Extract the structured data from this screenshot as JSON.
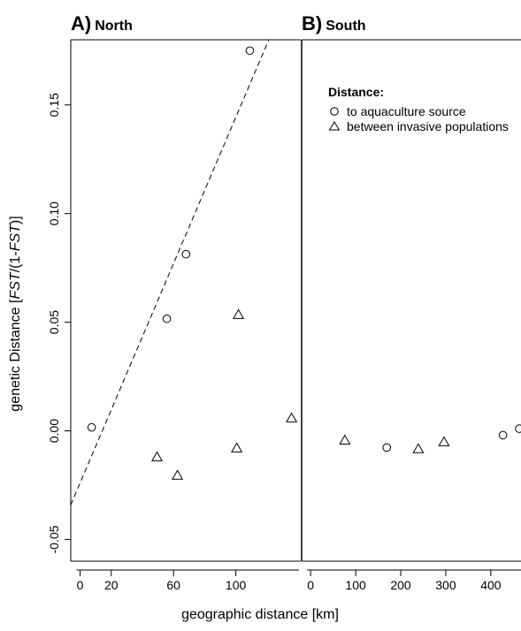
{
  "chart_data": [
    {
      "type": "scatter",
      "title_letter": "A)",
      "title": "North",
      "y_label_parts": [
        "genetic Distance [",
        "FST",
        "/(1-",
        "FST",
        ")]"
      ],
      "xlim": [
        -6,
        141.7
      ],
      "ylim": [
        -0.06,
        0.18
      ],
      "xticks": [
        0,
        20,
        60,
        100
      ],
      "yticks": [
        -0.05,
        {
          "value": 0,
          "label": "0.00"
        },
        0.05,
        {
          "value": 0.1,
          "label": "0.10"
        },
        0.15
      ],
      "series": [
        {
          "marker": "circle",
          "color": "#000000",
          "x": [
            7.4,
            55.7,
            68,
            109
          ],
          "values": [
            0.0016,
            0.0516,
            0.0813,
            0.175
          ]
        },
        {
          "marker": "triangle",
          "color": "#000000",
          "x": [
            49.4,
            62.5,
            100.6,
            101.7,
            135.8
          ],
          "values": [
            -0.0122,
            -0.0207,
            -0.0081,
            0.0533,
            0.0057
          ]
        }
      ],
      "fit_line": {
        "x": [
          -6,
          121
        ],
        "y": [
          -0.0341,
          0.1797
        ]
      }
    },
    {
      "type": "scatter",
      "title_letter": "B)",
      "title": "South",
      "xlim": [
        -20,
        467
      ],
      "ylim": [
        -0.06,
        0.18
      ],
      "xticks": [
        0,
        100,
        200,
        300,
        400
      ],
      "legend_title": "Distance:",
      "series": [
        {
          "name": "to aquaculture source",
          "marker": "circle",
          "color": "#000000",
          "x": [
            169,
            427,
            463
          ],
          "values": [
            -0.0077,
            -0.002,
            0.001
          ]
        },
        {
          "name": "between invasive populations",
          "marker": "triangle",
          "color": "#000000",
          "x": [
            76,
            239,
            296
          ],
          "values": [
            -0.0045,
            -0.0085,
            -0.0053
          ]
        }
      ]
    }
  ],
  "x_label": "geographic distance [km]"
}
